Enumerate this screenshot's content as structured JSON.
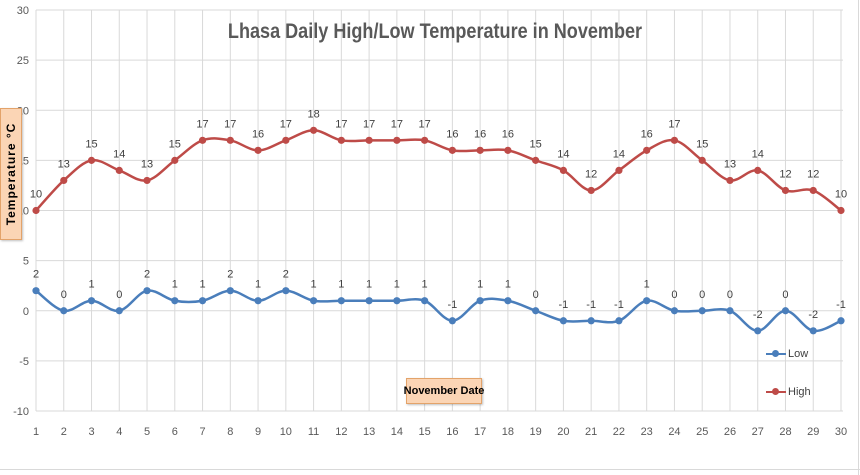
{
  "chart_data": {
    "type": "line",
    "title": "Lhasa Daily High/Low Temperature in November",
    "ylabel": "Temperature °C",
    "xlabel": "November Date",
    "x": [
      1,
      2,
      3,
      4,
      5,
      6,
      7,
      8,
      9,
      10,
      11,
      12,
      13,
      14,
      15,
      16,
      17,
      18,
      19,
      20,
      21,
      22,
      23,
      24,
      25,
      26,
      27,
      28,
      29,
      30
    ],
    "ylim": [
      -10,
      30
    ],
    "yticks": [
      -10,
      -5,
      0,
      5,
      10,
      15,
      20,
      25,
      30
    ],
    "grid": true,
    "legend_position": "right",
    "series": [
      {
        "name": "Low",
        "color": "#4a7ebb",
        "values": [
          2,
          0,
          1,
          0,
          2,
          1,
          1,
          2,
          1,
          2,
          1,
          1,
          1,
          1,
          1,
          -1,
          1,
          1,
          0,
          -1,
          -1,
          -1,
          1,
          0,
          0,
          0,
          -2,
          0,
          -2,
          -1
        ]
      },
      {
        "name": "High",
        "color": "#be4b48",
        "values": [
          10,
          13,
          15,
          14,
          13,
          15,
          17,
          17,
          16,
          17,
          18,
          17,
          17,
          17,
          17,
          16,
          16,
          16,
          15,
          14,
          12,
          14,
          16,
          17,
          15,
          13,
          14,
          12,
          12,
          10
        ]
      }
    ]
  }
}
